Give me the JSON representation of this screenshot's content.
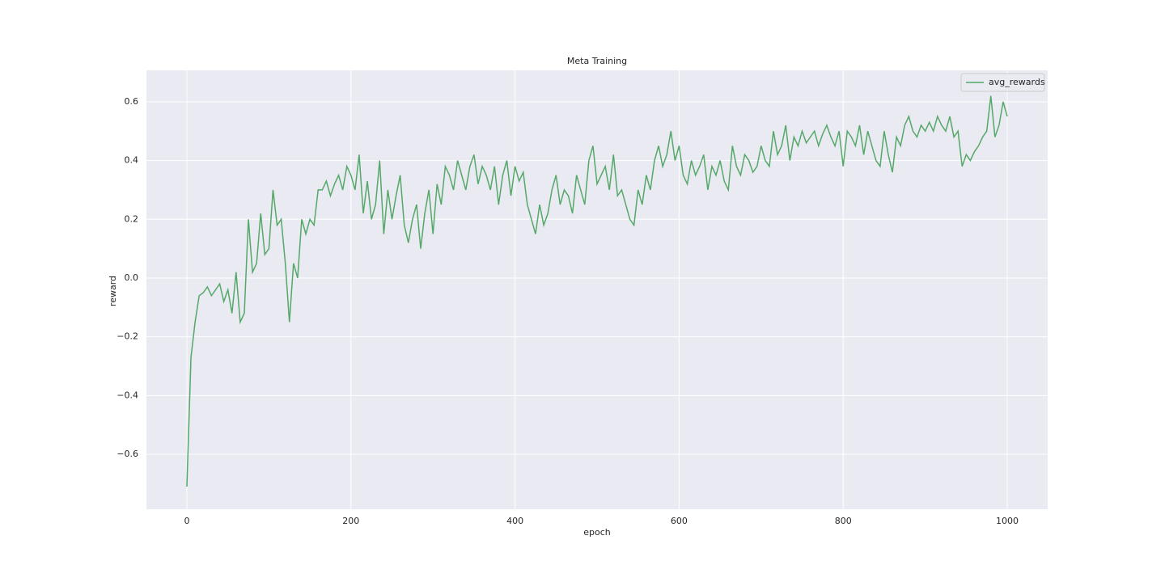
{
  "chart_data": {
    "type": "line",
    "title": "Meta Training",
    "xlabel": "epoch",
    "ylabel": "reward",
    "x": [
      0,
      5,
      10,
      15,
      20,
      25,
      30,
      35,
      40,
      45,
      50,
      55,
      60,
      65,
      70,
      75,
      80,
      85,
      90,
      95,
      100,
      105,
      110,
      115,
      120,
      125,
      130,
      135,
      140,
      145,
      150,
      155,
      160,
      165,
      170,
      175,
      180,
      185,
      190,
      195,
      200,
      205,
      210,
      215,
      220,
      225,
      230,
      235,
      240,
      245,
      250,
      255,
      260,
      265,
      270,
      275,
      280,
      285,
      290,
      295,
      300,
      305,
      310,
      315,
      320,
      325,
      330,
      335,
      340,
      345,
      350,
      355,
      360,
      365,
      370,
      375,
      380,
      385,
      390,
      395,
      400,
      405,
      410,
      415,
      420,
      425,
      430,
      435,
      440,
      445,
      450,
      455,
      460,
      465,
      470,
      475,
      480,
      485,
      490,
      495,
      500,
      505,
      510,
      515,
      520,
      525,
      530,
      535,
      540,
      545,
      550,
      555,
      560,
      565,
      570,
      575,
      580,
      585,
      590,
      595,
      600,
      605,
      610,
      615,
      620,
      625,
      630,
      635,
      640,
      645,
      650,
      655,
      660,
      665,
      670,
      675,
      680,
      685,
      690,
      695,
      700,
      705,
      710,
      715,
      720,
      725,
      730,
      735,
      740,
      745,
      750,
      755,
      760,
      765,
      770,
      775,
      780,
      785,
      790,
      795,
      800,
      805,
      810,
      815,
      820,
      825,
      830,
      835,
      840,
      845,
      850,
      855,
      860,
      865,
      870,
      875,
      880,
      885,
      890,
      895,
      900,
      905,
      910,
      915,
      920,
      925,
      930,
      935,
      940,
      945,
      950,
      955,
      960,
      965,
      970,
      975,
      980,
      985,
      990,
      995,
      1000
    ],
    "series": [
      {
        "name": "avg_rewards",
        "color": "#55a868",
        "values": [
          -0.71,
          -0.27,
          -0.15,
          -0.06,
          -0.05,
          -0.03,
          -0.06,
          -0.04,
          -0.02,
          -0.08,
          -0.04,
          -0.12,
          0.02,
          -0.15,
          -0.12,
          0.2,
          0.02,
          0.05,
          0.22,
          0.08,
          0.1,
          0.3,
          0.18,
          0.2,
          0.05,
          -0.15,
          0.05,
          0.0,
          0.2,
          0.15,
          0.2,
          0.18,
          0.3,
          0.3,
          0.33,
          0.28,
          0.32,
          0.35,
          0.3,
          0.38,
          0.35,
          0.3,
          0.42,
          0.22,
          0.33,
          0.2,
          0.25,
          0.4,
          0.15,
          0.3,
          0.2,
          0.28,
          0.35,
          0.18,
          0.12,
          0.2,
          0.25,
          0.1,
          0.22,
          0.3,
          0.15,
          0.32,
          0.25,
          0.38,
          0.35,
          0.3,
          0.4,
          0.35,
          0.3,
          0.38,
          0.42,
          0.32,
          0.38,
          0.35,
          0.3,
          0.38,
          0.25,
          0.35,
          0.4,
          0.28,
          0.38,
          0.33,
          0.36,
          0.25,
          0.2,
          0.15,
          0.25,
          0.18,
          0.22,
          0.3,
          0.35,
          0.25,
          0.3,
          0.28,
          0.22,
          0.35,
          0.3,
          0.25,
          0.4,
          0.45,
          0.32,
          0.35,
          0.38,
          0.3,
          0.42,
          0.28,
          0.3,
          0.25,
          0.2,
          0.18,
          0.3,
          0.25,
          0.35,
          0.3,
          0.4,
          0.45,
          0.38,
          0.42,
          0.5,
          0.4,
          0.45,
          0.35,
          0.32,
          0.4,
          0.35,
          0.38,
          0.42,
          0.3,
          0.38,
          0.35,
          0.4,
          0.33,
          0.3,
          0.45,
          0.38,
          0.35,
          0.42,
          0.4,
          0.36,
          0.38,
          0.45,
          0.4,
          0.38,
          0.5,
          0.42,
          0.45,
          0.52,
          0.4,
          0.48,
          0.45,
          0.5,
          0.46,
          0.48,
          0.5,
          0.45,
          0.49,
          0.52,
          0.48,
          0.45,
          0.5,
          0.38,
          0.5,
          0.48,
          0.45,
          0.52,
          0.42,
          0.5,
          0.45,
          0.4,
          0.38,
          0.5,
          0.42,
          0.36,
          0.48,
          0.45,
          0.52,
          0.55,
          0.5,
          0.48,
          0.52,
          0.5,
          0.53,
          0.5,
          0.55,
          0.52,
          0.5,
          0.55,
          0.48,
          0.5,
          0.38,
          0.42,
          0.4,
          0.43,
          0.45,
          0.48,
          0.5,
          0.62,
          0.48,
          0.52,
          0.6,
          0.55
        ]
      }
    ],
    "xlim": [
      -49.3,
      1049.3
    ],
    "ylim": [
      -0.787,
      0.707
    ],
    "xticks": [
      0,
      200,
      400,
      600,
      800,
      1000
    ],
    "yticks": [
      {
        "value": -0.6,
        "label": "−0.6"
      },
      {
        "value": -0.4,
        "label": "−0.4"
      },
      {
        "value": -0.2,
        "label": "−0.2"
      },
      {
        "value": 0,
        "label": "0.0"
      },
      0.2,
      0.4,
      0.6
    ],
    "grid": true,
    "legend": "upper right"
  }
}
